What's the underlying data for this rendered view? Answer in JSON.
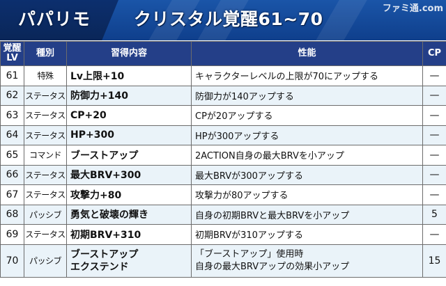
{
  "header": {
    "character": "パパリモ",
    "title": "クリスタル覚醒61~70",
    "watermark": "ファミ通.com"
  },
  "table": {
    "headers": {
      "lv": [
        "覚醒",
        "LV"
      ],
      "type": "種別",
      "skill": "習得内容",
      "effect": "性能",
      "cp": "CP"
    },
    "rows": [
      {
        "lv": "61",
        "type": "特殊",
        "skill": [
          "Lv上限+10"
        ],
        "effect": [
          "キャラクターレベルの上限が70にアップする"
        ],
        "cp": "—"
      },
      {
        "lv": "62",
        "type": "ステータス",
        "skill": [
          "防御力+140"
        ],
        "effect": [
          "防御力が140アップする"
        ],
        "cp": "—"
      },
      {
        "lv": "63",
        "type": "ステータス",
        "skill": [
          "CP+20"
        ],
        "effect": [
          "CPが20アップする"
        ],
        "cp": "—"
      },
      {
        "lv": "64",
        "type": "ステータス",
        "skill": [
          "HP+300"
        ],
        "effect": [
          "HPが300アップする"
        ],
        "cp": "—"
      },
      {
        "lv": "65",
        "type": "コマンド",
        "skill": [
          "ブーストアップ"
        ],
        "effect": [
          "2ACTION自身の最大BRVを小アップ"
        ],
        "cp": "—"
      },
      {
        "lv": "66",
        "type": "ステータス",
        "skill": [
          "最大BRV+300"
        ],
        "effect": [
          "最大BRVが300アップする"
        ],
        "cp": "—"
      },
      {
        "lv": "67",
        "type": "ステータス",
        "skill": [
          "攻撃力+80"
        ],
        "effect": [
          "攻撃力が80アップする"
        ],
        "cp": "—"
      },
      {
        "lv": "68",
        "type": "パッシブ",
        "skill": [
          "勇気と破壊の輝き"
        ],
        "effect": [
          "自身の初期BRVと最大BRVを小アップ"
        ],
        "cp": "5"
      },
      {
        "lv": "69",
        "type": "ステータス",
        "skill": [
          "初期BRV+310"
        ],
        "effect": [
          "初期BRVが310アップする"
        ],
        "cp": "—"
      },
      {
        "lv": "70",
        "type": "パッシブ",
        "skill": [
          "ブーストアップ",
          "エクステンド"
        ],
        "effect": [
          "「ブーストアップ」使用時",
          "自身の最大BRVアップの効果小アップ"
        ],
        "cp": "15"
      }
    ]
  }
}
